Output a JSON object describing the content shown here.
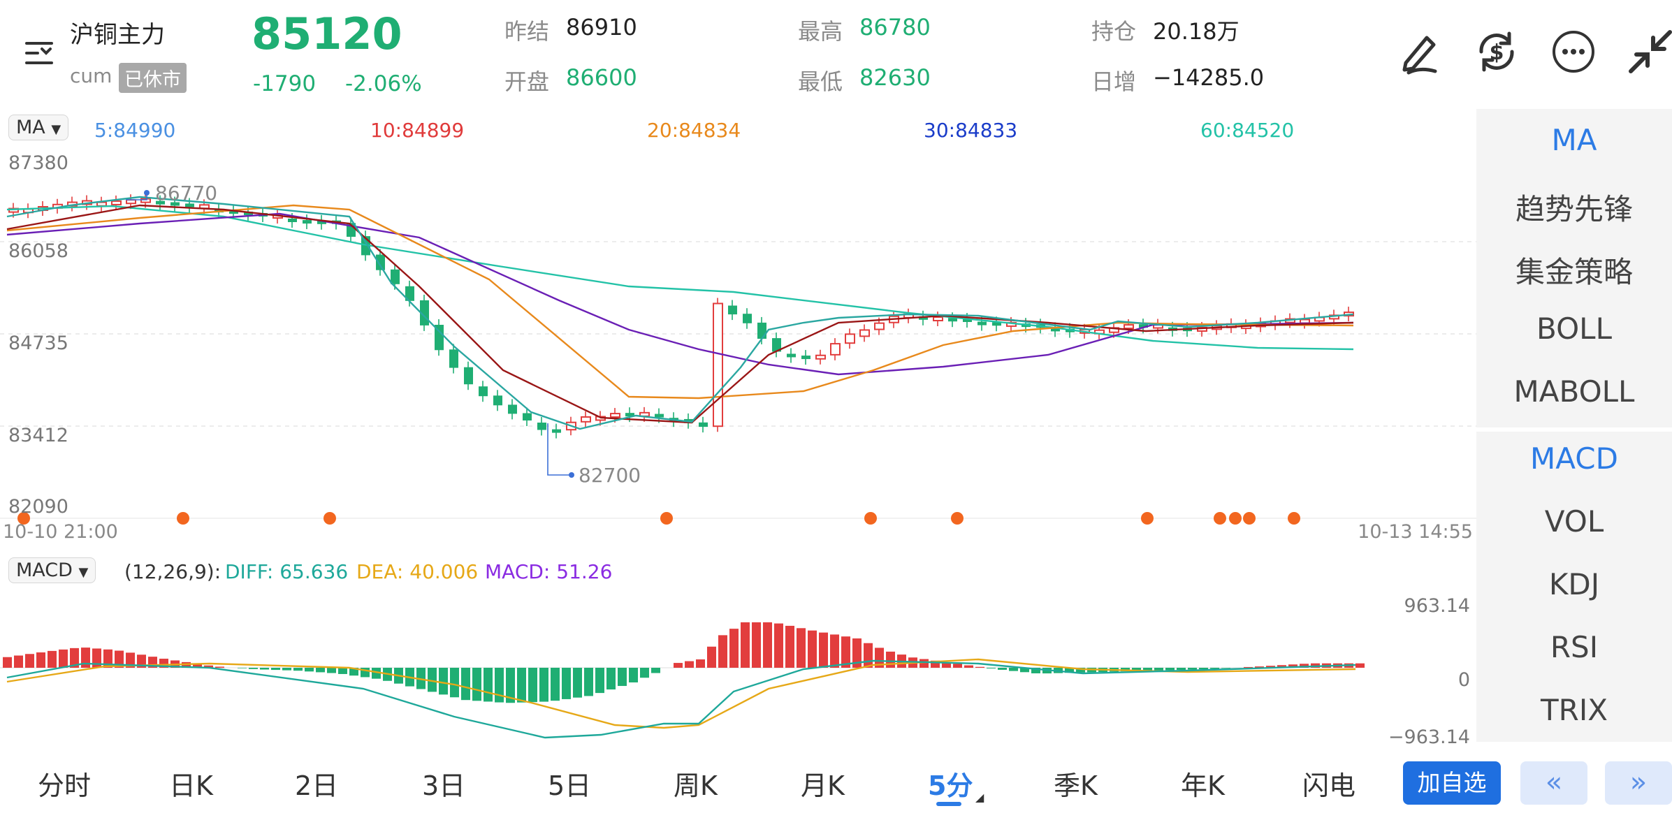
{
  "header": {
    "title": "沪铜主力",
    "code": "cum",
    "status_badge": "已休市",
    "price": "85120",
    "change": "-1790",
    "change_pct": "-2.06%",
    "prev_settle_label": "昨结",
    "prev_settle": "86910",
    "open_label": "开盘",
    "open": "86600",
    "high_label": "最高",
    "high": "86780",
    "low_label": "最低",
    "low": "82630",
    "oi_label": "持仓",
    "oi": "20.18万",
    "oi_change_label": "日增",
    "oi_change": "−14285.0",
    "icons": [
      "menu-icon",
      "draw-icon",
      "currency-refresh-icon",
      "more-icon",
      "collapse-icon"
    ]
  },
  "ma_bar": {
    "selector": "MA",
    "items": [
      {
        "label": "5:84990",
        "color": "#4a90e2"
      },
      {
        "label": "10:84899",
        "color": "#e03b3b"
      },
      {
        "label": "20:84834",
        "color": "#e8891c"
      },
      {
        "label": "30:84833",
        "color": "#1a3cc9"
      },
      {
        "label": "60:84520",
        "color": "#23c2a7"
      }
    ]
  },
  "main_chart": {
    "y_labels": [
      "87380",
      "86058",
      "84735",
      "83412",
      "82090"
    ],
    "time_start": "10-10 21:00",
    "time_end": "10-13 14:55",
    "high_mark": "86770",
    "low_mark": "82700"
  },
  "macd_bar": {
    "selector": "MACD",
    "params": "(12,26,9):",
    "diff": "DIFF: 65.636",
    "dea": "DEA: 40.006",
    "macd": "MACD: 51.26",
    "diff_color": "#1ea89a",
    "dea_color": "#e6a817",
    "macd_color": "#8a2be2",
    "y_top": "963.14",
    "y_mid": "0",
    "y_bottom": "−963.14"
  },
  "right_panel": {
    "main_indicators": [
      "MA",
      "趋势先锋",
      "集金策略",
      "BOLL",
      "MABOLL"
    ],
    "sub_indicators": [
      "MACD",
      "VOL",
      "KDJ",
      "RSI",
      "TRIX"
    ]
  },
  "bottom_nav": {
    "tabs": [
      "分时",
      "日K",
      "2日",
      "3日",
      "5日",
      "周K",
      "月K",
      "5分",
      "季K",
      "年K",
      "闪电"
    ],
    "active_tab": "5分",
    "add_button": "加自选",
    "prev_icon": "double-chevron-left-icon",
    "next_icon": "double-chevron-right-icon"
  },
  "colors": {
    "up": "#e23d3d",
    "down": "#1fae73",
    "accent": "#2c7be5"
  }
}
